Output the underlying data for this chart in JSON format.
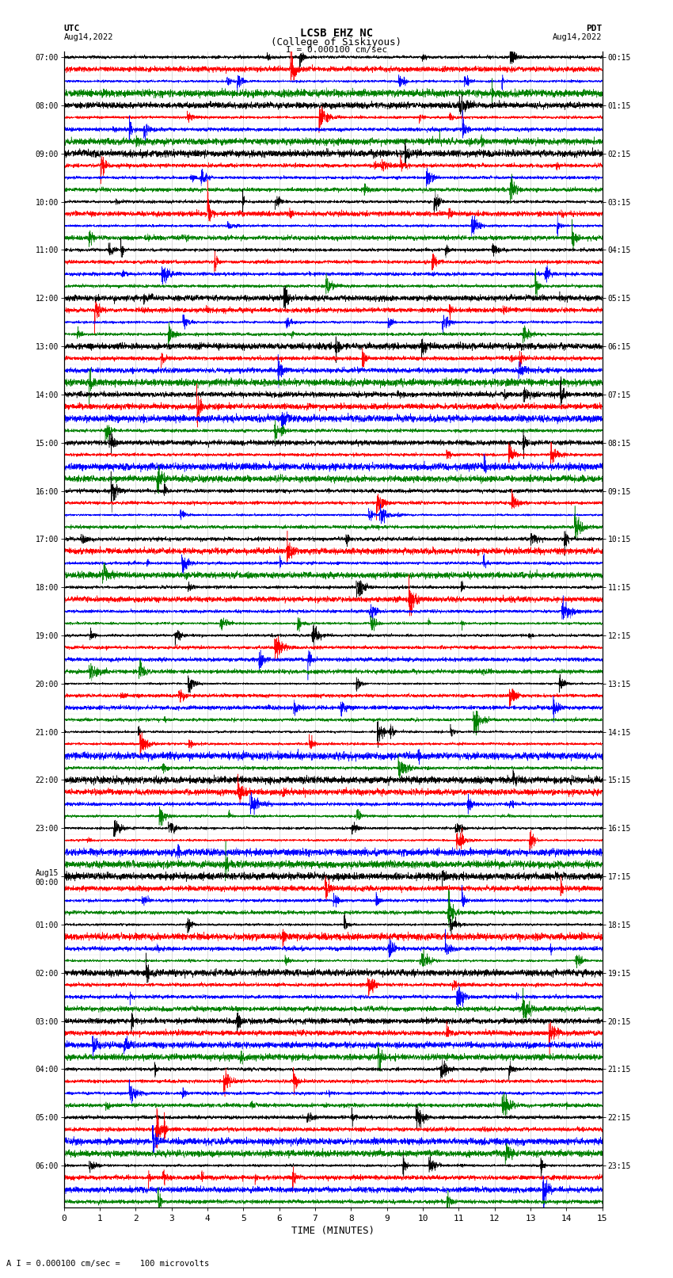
{
  "title_line1": "LCSB EHZ NC",
  "title_line2": "(College of Siskiyous)",
  "scale_text": "I = 0.000100 cm/sec",
  "bottom_text": "A I = 0.000100 cm/sec =    100 microvolts",
  "left_label_line1": "UTC",
  "left_label_line2": "Aug14,2022",
  "right_label_line1": "PDT",
  "right_label_line2": "Aug14,2022",
  "xlabel": "TIME (MINUTES)",
  "xlim": [
    0,
    15
  ],
  "xticks": [
    0,
    1,
    2,
    3,
    4,
    5,
    6,
    7,
    8,
    9,
    10,
    11,
    12,
    13,
    14,
    15
  ],
  "bg_color": "#ffffff",
  "trace_colors": [
    "black",
    "red",
    "blue",
    "green"
  ],
  "fig_width": 8.5,
  "fig_height": 16.13,
  "dpi": 100,
  "num_rows": 96,
  "left_times_utc": [
    "07:00",
    "",
    "",
    "",
    "08:00",
    "",
    "",
    "",
    "09:00",
    "",
    "",
    "",
    "10:00",
    "",
    "",
    "",
    "11:00",
    "",
    "",
    "",
    "12:00",
    "",
    "",
    "",
    "13:00",
    "",
    "",
    "",
    "14:00",
    "",
    "",
    "",
    "15:00",
    "",
    "",
    "",
    "16:00",
    "",
    "",
    "",
    "17:00",
    "",
    "",
    "",
    "18:00",
    "",
    "",
    "",
    "19:00",
    "",
    "",
    "",
    "20:00",
    "",
    "",
    "",
    "21:00",
    "",
    "",
    "",
    "22:00",
    "",
    "",
    "",
    "23:00",
    "",
    "",
    "",
    "Aug15\n00:00",
    "",
    "",
    "",
    "01:00",
    "",
    "",
    "",
    "02:00",
    "",
    "",
    "",
    "03:00",
    "",
    "",
    "",
    "04:00",
    "",
    "",
    "",
    "05:00",
    "",
    "",
    "",
    "06:00",
    "",
    "",
    ""
  ],
  "right_times_pdt": [
    "00:15",
    "",
    "",
    "",
    "01:15",
    "",
    "",
    "",
    "02:15",
    "",
    "",
    "",
    "03:15",
    "",
    "",
    "",
    "04:15",
    "",
    "",
    "",
    "05:15",
    "",
    "",
    "",
    "06:15",
    "",
    "",
    "",
    "07:15",
    "",
    "",
    "",
    "08:15",
    "",
    "",
    "",
    "09:15",
    "",
    "",
    "",
    "10:15",
    "",
    "",
    "",
    "11:15",
    "",
    "",
    "",
    "12:15",
    "",
    "",
    "",
    "13:15",
    "",
    "",
    "",
    "14:15",
    "",
    "",
    "",
    "15:15",
    "",
    "",
    "",
    "16:15",
    "",
    "",
    "",
    "17:15",
    "",
    "",
    "",
    "18:15",
    "",
    "",
    "",
    "19:15",
    "",
    "",
    "",
    "20:15",
    "",
    "",
    "",
    "21:15",
    "",
    "",
    "",
    "22:15",
    "",
    "",
    "",
    "23:15",
    "",
    "",
    ""
  ]
}
